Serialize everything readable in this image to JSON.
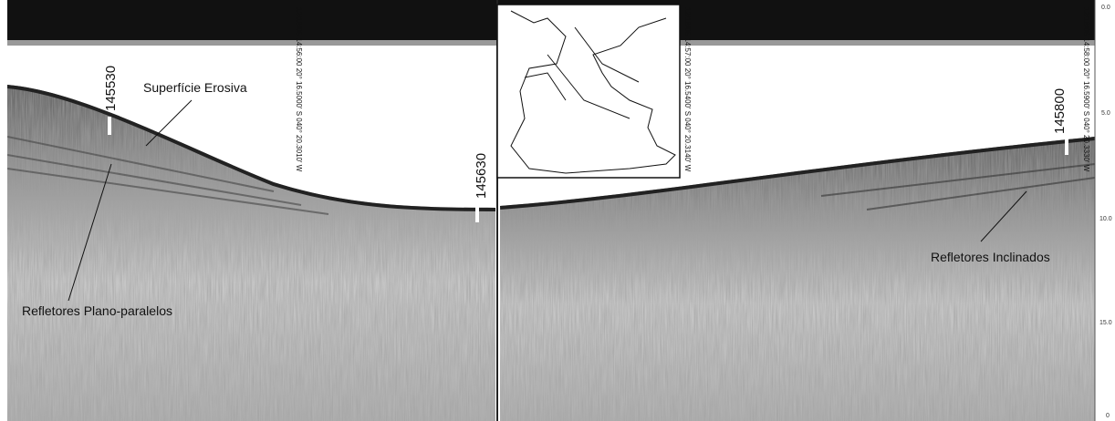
{
  "annotations": {
    "erosive_surface": "Superfície Erosiva",
    "parallel_reflectors": "Refletores Plano-paralelos",
    "inclined_reflectors": "Refletores Inclinados"
  },
  "fix_marks": [
    "145530",
    "145630",
    "145800"
  ],
  "stamps": [
    "12/18/05 14:56:00 20° 16.5000' S 040° 20.3010' W",
    "12/18/05 14:57:00 20° 16.5400' S 040° 20.3140' W",
    "12/18/05 14:58:00 20° 16.5900' S 040° 20.3330' W"
  ],
  "depth_scale": [
    "0.0",
    "5.0",
    "10.0",
    "15.0",
    "0"
  ]
}
